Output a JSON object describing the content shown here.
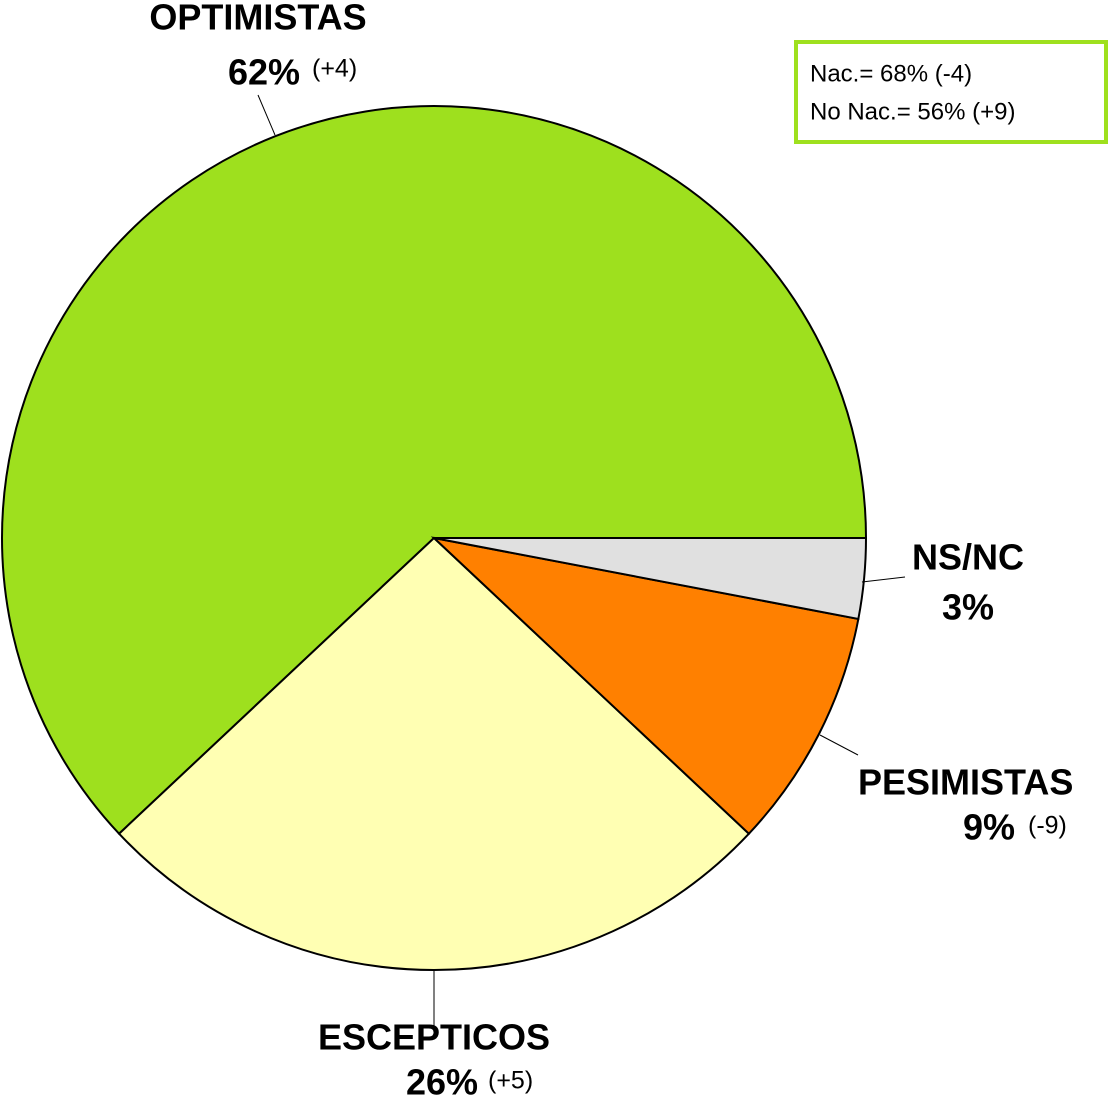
{
  "chart_data": {
    "type": "pie",
    "categories": [
      "OPTIMISTAS",
      "ESCEPTICOS",
      "PESIMISTAS",
      "NS/NC"
    ],
    "values": [
      62,
      26,
      9,
      3
    ],
    "value_labels": [
      "62%",
      "26%",
      "9%",
      "3%"
    ],
    "changes": [
      "(+4)",
      "(+5)",
      "(-9)",
      null
    ],
    "colors": [
      "#9ee01e",
      "#ffffb3",
      "#ff8000",
      "#e0e0e0"
    ],
    "annotations": [
      "Nac.= 68% (-4)",
      "No Nac.= 56% (+9)"
    ]
  }
}
